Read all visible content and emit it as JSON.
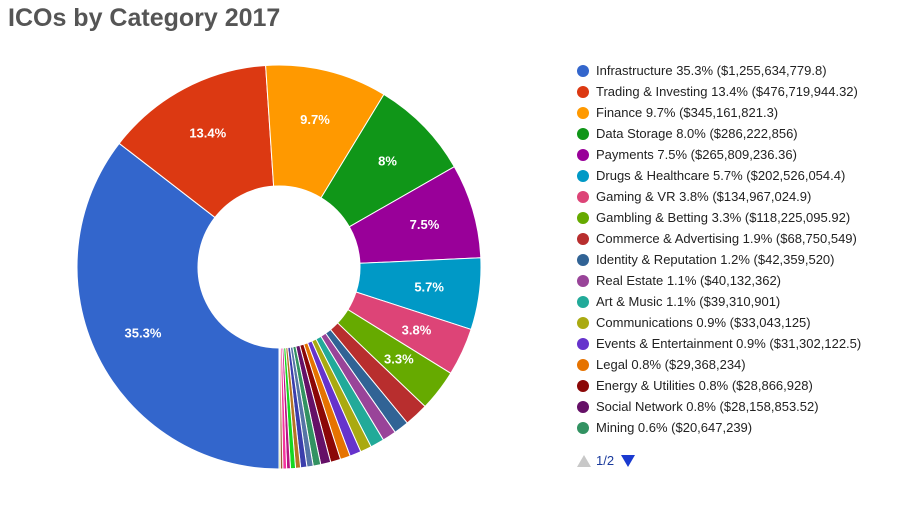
{
  "chart_data": {
    "type": "pie",
    "title": "ICOs by Category 2017",
    "series": [
      {
        "name": "Infrastructure",
        "percent": 35.3,
        "value": 1255634779.8,
        "label": "Infrastructure 35.3% ($1,255,634,779.8)",
        "slice_label": "35.3%",
        "color": "#3366cc"
      },
      {
        "name": "Trading & Investing",
        "percent": 13.4,
        "value": 476719944.32,
        "label": "Trading & Investing 13.4% ($476,719,944.32)",
        "slice_label": "13.4%",
        "color": "#dc3912"
      },
      {
        "name": "Finance",
        "percent": 9.7,
        "value": 345161821.3,
        "label": "Finance 9.7% ($345,161,821.3)",
        "slice_label": "9.7%",
        "color": "#ff9900"
      },
      {
        "name": "Data Storage",
        "percent": 8.0,
        "value": 286222856,
        "label": "Data Storage 8.0% ($286,222,856)",
        "slice_label": "8%",
        "color": "#109618"
      },
      {
        "name": "Payments",
        "percent": 7.5,
        "value": 265809236.36,
        "label": "Payments 7.5% ($265,809,236.36)",
        "slice_label": "7.5%",
        "color": "#990099"
      },
      {
        "name": "Drugs & Healthcare",
        "percent": 5.7,
        "value": 202526054.4,
        "label": "Drugs & Healthcare 5.7% ($202,526,054.4)",
        "slice_label": "5.7%",
        "color": "#0099c6"
      },
      {
        "name": "Gaming & VR",
        "percent": 3.8,
        "value": 134967024.9,
        "label": "Gaming & VR 3.8% ($134,967,024.9)",
        "slice_label": "3.8%",
        "color": "#dd4477"
      },
      {
        "name": "Gambling & Betting",
        "percent": 3.3,
        "value": 118225095.92,
        "label": "Gambling & Betting 3.3% ($118,225,095.92)",
        "slice_label": "3.3%",
        "color": "#66aa00"
      },
      {
        "name": "Commerce & Advertising",
        "percent": 1.9,
        "value": 68750549,
        "label": "Commerce & Advertising 1.9% ($68,750,549)",
        "slice_label": "",
        "color": "#b82e2e"
      },
      {
        "name": "Identity & Reputation",
        "percent": 1.2,
        "value": 42359520,
        "label": "Identity & Reputation 1.2% ($42,359,520)",
        "slice_label": "",
        "color": "#316395"
      },
      {
        "name": "Real Estate",
        "percent": 1.1,
        "value": 40132362,
        "label": "Real Estate 1.1% ($40,132,362)",
        "slice_label": "",
        "color": "#994499"
      },
      {
        "name": "Art & Music",
        "percent": 1.1,
        "value": 39310901,
        "label": "Art & Music 1.1% ($39,310,901)",
        "slice_label": "",
        "color": "#22aa99"
      },
      {
        "name": "Communications",
        "percent": 0.9,
        "value": 33043125,
        "label": "Communications 0.9% ($33,043,125)",
        "slice_label": "",
        "color": "#aaaa11"
      },
      {
        "name": "Events & Entertainment",
        "percent": 0.9,
        "value": 31302122.5,
        "label": "Events & Entertainment 0.9% ($31,302,122.5)",
        "slice_label": "",
        "color": "#6633cc"
      },
      {
        "name": "Legal",
        "percent": 0.8,
        "value": 29368234,
        "label": "Legal 0.8% ($29,368,234)",
        "slice_label": "",
        "color": "#e67300"
      },
      {
        "name": "Energy & Utilities",
        "percent": 0.8,
        "value": 28866928,
        "label": "Energy & Utilities 0.8% ($28,866,928)",
        "slice_label": "",
        "color": "#8b0707"
      },
      {
        "name": "Social Network",
        "percent": 0.8,
        "value": 28158853.52,
        "label": "Social Network 0.8% ($28,158,853.52)",
        "slice_label": "",
        "color": "#651067"
      },
      {
        "name": "Mining",
        "percent": 0.6,
        "value": 20647239,
        "label": "Mining 0.6% ($20,647,239)",
        "slice_label": "",
        "color": "#329262"
      }
    ],
    "other_series": [
      {
        "percent": 0.5,
        "color": "#5574a6"
      },
      {
        "percent": 0.5,
        "color": "#3b3eac"
      },
      {
        "percent": 0.4,
        "color": "#b77322"
      },
      {
        "percent": 0.4,
        "color": "#16d620"
      },
      {
        "percent": 0.3,
        "color": "#b91383"
      },
      {
        "percent": 0.3,
        "color": "#f4359e"
      },
      {
        "percent": 0.2,
        "color": "#9c5935"
      },
      {
        "percent": 0.1,
        "color": "#a9c413"
      }
    ],
    "legend_position": "right",
    "pager": {
      "label": "1/2",
      "page": 1,
      "pages": 2
    }
  }
}
